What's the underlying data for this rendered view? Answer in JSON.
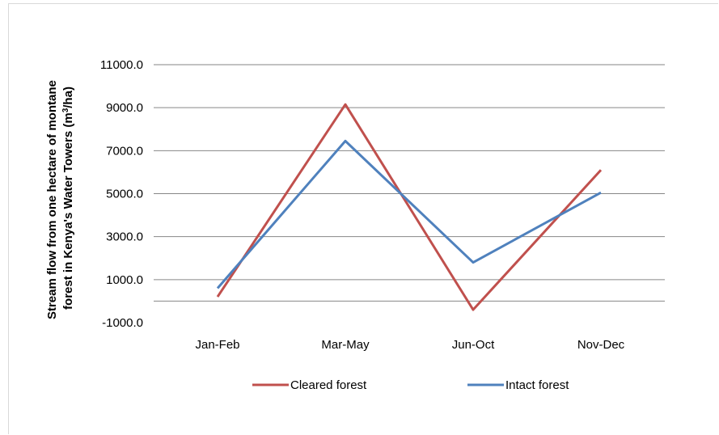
{
  "chart_data": {
    "type": "line",
    "categories": [
      "Jan-Feb",
      "Mar-May",
      "Jun-Oct",
      "Nov-Dec"
    ],
    "series": [
      {
        "name": "Cleared forest",
        "values": [
          200,
          9150,
          -400,
          6100
        ],
        "color": "#c0504d"
      },
      {
        "name": "Intact forest",
        "values": [
          600,
          7450,
          1800,
          5050
        ],
        "color": "#4f81bd"
      }
    ],
    "ylabel_line1": "Stream flow from one hectare of montane",
    "ylabel_line2": "forest in Kenya's Water Towers (m",
    "ylabel_sup": "3",
    "ylabel_end": "/ha)",
    "ylim": [
      -1000,
      11000
    ],
    "yticks": [
      "-1000.0",
      "1000.0",
      "3000.0",
      "5000.0",
      "7000.0",
      "9000.0",
      "11000.0"
    ],
    "ytick_values": [
      -1000,
      1000,
      3000,
      5000,
      7000,
      9000,
      11000
    ],
    "gridlines": [
      0,
      1000,
      3000,
      5000,
      7000,
      9000,
      11000
    ],
    "grid": true,
    "legend_position": "bottom"
  }
}
